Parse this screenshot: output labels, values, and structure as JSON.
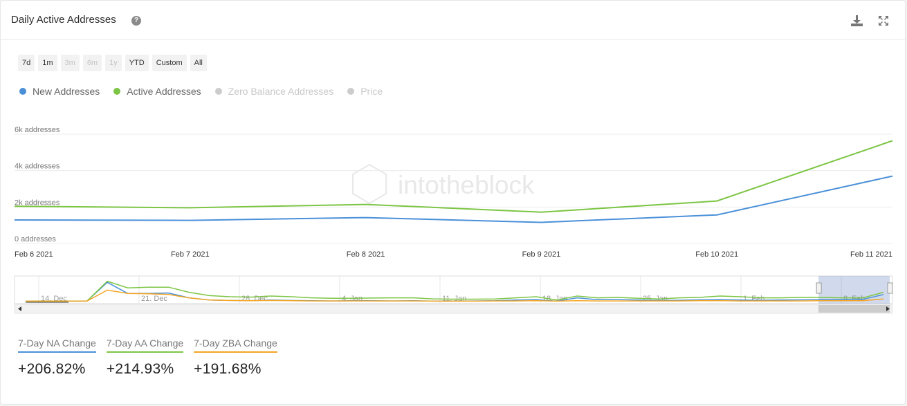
{
  "header": {
    "title": "Daily Active Addresses",
    "help_glyph": "?",
    "download_icon": "download-icon",
    "expand_icon": "expand-icon"
  },
  "ranges": [
    {
      "label": "7d",
      "enabled": true
    },
    {
      "label": "1m",
      "enabled": true
    },
    {
      "label": "3m",
      "enabled": false
    },
    {
      "label": "6m",
      "enabled": false
    },
    {
      "label": "1y",
      "enabled": false
    },
    {
      "label": "YTD",
      "enabled": true
    },
    {
      "label": "Custom",
      "enabled": true
    },
    {
      "label": "All",
      "enabled": true
    }
  ],
  "legend": [
    {
      "name": "New Addresses",
      "color": "#4a90d9",
      "active": true
    },
    {
      "name": "Active Addresses",
      "color": "#7cc544",
      "active": true
    },
    {
      "name": "Zero Balance Addresses",
      "color": "#cccccc",
      "active": false
    },
    {
      "name": "Price",
      "color": "#cccccc",
      "active": false
    }
  ],
  "watermark": "intotheblock",
  "chart_data": {
    "type": "line",
    "categories": [
      "Feb 6 2021",
      "Feb 7 2021",
      "Feb 8 2021",
      "Feb 9 2021",
      "Feb 10 2021",
      "Feb 11 2021"
    ],
    "y_ticks": [
      "0 addresses",
      "2k addresses",
      "4k addresses",
      "6k addresses"
    ],
    "ylim": [
      0,
      6000
    ],
    "grid": true,
    "series": [
      {
        "name": "New Addresses",
        "color": "#4a90d9",
        "values": [
          1290,
          1270,
          1420,
          1160,
          1570,
          3700
        ]
      },
      {
        "name": "Active Addresses",
        "color": "#7cc544",
        "values": [
          2040,
          1960,
          2140,
          1720,
          2330,
          5640
        ]
      }
    ],
    "navigator": {
      "labels": [
        "14. Dec",
        "21. Dec",
        "28. Dec",
        "4. Jan",
        "11. Jan",
        "18. Jan",
        "25. Jan",
        "1. Feb",
        "8. Feb"
      ],
      "series": [
        {
          "name": "New Addresses",
          "color": "#4a90d9",
          "values": [
            0.05,
            0.05,
            0.05,
            0.05,
            0.9,
            0.4,
            0.4,
            0.42,
            0.2,
            0.1,
            0.08,
            0.07,
            0.1,
            0.08,
            0.07,
            0.06,
            0.07,
            0.07,
            0.06,
            0.07,
            0.05,
            0.05,
            0.06,
            0.07,
            0.1,
            0.12,
            0.05,
            0.2,
            0.12,
            0.12,
            0.1,
            0.08,
            0.09,
            0.11,
            0.12,
            0.1,
            0.09,
            0.1,
            0.11,
            0.12,
            0.12,
            0.13,
            0.35
          ]
        },
        {
          "name": "Active Addresses",
          "color": "#7cc544",
          "values": [
            0.05,
            0.05,
            0.05,
            0.05,
            0.95,
            0.65,
            0.68,
            0.68,
            0.45,
            0.3,
            0.25,
            0.23,
            0.28,
            0.25,
            0.2,
            0.18,
            0.18,
            0.19,
            0.2,
            0.2,
            0.15,
            0.14,
            0.14,
            0.15,
            0.2,
            0.25,
            0.1,
            0.28,
            0.2,
            0.22,
            0.18,
            0.15,
            0.2,
            0.22,
            0.28,
            0.25,
            0.2,
            0.2,
            0.22,
            0.22,
            0.2,
            0.2,
            0.45
          ]
        },
        {
          "name": "Zero Balance Addresses",
          "color": "#f5a623",
          "values": [
            0.05,
            0.05,
            0.05,
            0.05,
            0.55,
            0.4,
            0.38,
            0.35,
            0.2,
            0.1,
            0.08,
            0.07,
            0.08,
            0.07,
            0.06,
            0.06,
            0.06,
            0.06,
            0.06,
            0.06,
            0.05,
            0.05,
            0.05,
            0.06,
            0.06,
            0.07,
            0.05,
            0.07,
            0.06,
            0.06,
            0.06,
            0.06,
            0.06,
            0.07,
            0.07,
            0.06,
            0.06,
            0.06,
            0.06,
            0.07,
            0.07,
            0.07,
            0.15
          ]
        }
      ],
      "selection_fraction": [
        0.9,
        1.0
      ]
    }
  },
  "stats": [
    {
      "label": "7-Day NA Change",
      "value": "+206.82%",
      "color": "#4a90d9"
    },
    {
      "label": "7-Day AA Change",
      "value": "+214.93%",
      "color": "#7cc544"
    },
    {
      "label": "7-Day ZBA Change",
      "value": "+191.68%",
      "color": "#f5a623"
    }
  ]
}
